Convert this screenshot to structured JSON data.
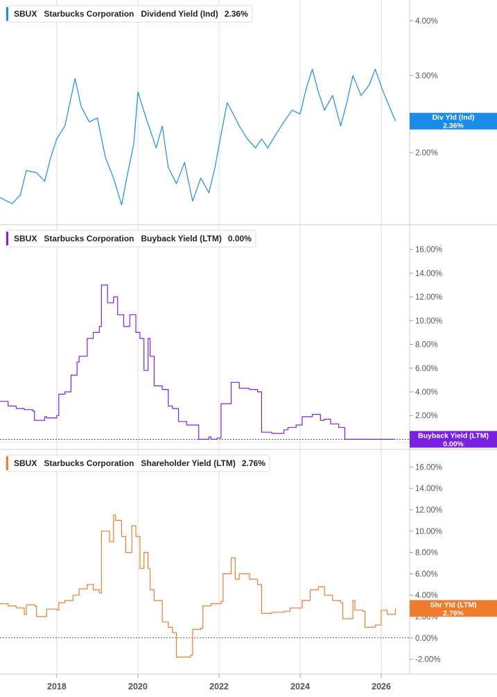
{
  "chart_data": [
    {
      "type": "line",
      "ticker": "SBUX",
      "company": "Starbucks Corporation",
      "metric": "Dividend Yield (Ind)",
      "current_value": "2.36%",
      "tag_label": "Div Yld (Ind)",
      "color": "#1a8be8",
      "log_scale": true,
      "ylim": [
        1.4,
        4.3
      ],
      "yticks": [
        {
          "value": 2,
          "label": "2.00%"
        },
        {
          "value": 3,
          "label": "3.00%"
        },
        {
          "value": 4,
          "label": "4.00%"
        }
      ],
      "zero_line": false,
      "x": [
        2016.6,
        2016.9,
        2017.1,
        2017.25,
        2017.5,
        2017.7,
        2017.85,
        2018.0,
        2018.2,
        2018.45,
        2018.6,
        2018.8,
        2019.0,
        2019.2,
        2019.4,
        2019.6,
        2019.75,
        2019.9,
        2020.0,
        2020.2,
        2020.45,
        2020.6,
        2020.75,
        2020.95,
        2021.15,
        2021.35,
        2021.55,
        2021.75,
        2021.9,
        2022.05,
        2022.2,
        2022.35,
        2022.5,
        2022.7,
        2022.9,
        2023.05,
        2023.2,
        2023.4,
        2023.6,
        2023.8,
        2024.0,
        2024.15,
        2024.3,
        2024.45,
        2024.6,
        2024.8,
        2025.0,
        2025.15,
        2025.3,
        2025.5,
        2025.7,
        2025.85,
        2026.05,
        2026.2,
        2026.35
      ],
      "y": [
        1.58,
        1.53,
        1.6,
        1.82,
        1.8,
        1.72,
        1.95,
        2.15,
        2.3,
        2.95,
        2.55,
        2.35,
        2.4,
        1.95,
        1.75,
        1.52,
        1.8,
        2.1,
        2.75,
        2.4,
        2.05,
        2.3,
        1.85,
        1.7,
        1.9,
        1.55,
        1.75,
        1.62,
        1.85,
        2.2,
        2.6,
        2.45,
        2.3,
        2.15,
        2.05,
        2.15,
        2.05,
        2.2,
        2.35,
        2.5,
        2.45,
        2.8,
        3.1,
        2.75,
        2.5,
        2.7,
        2.3,
        2.6,
        3.0,
        2.7,
        2.85,
        3.1,
        2.75,
        2.55,
        2.36
      ]
    },
    {
      "type": "line",
      "ticker": "SBUX",
      "company": "Starbucks Corporation",
      "metric": "Buyback Yield (LTM)",
      "current_value": "0.00%",
      "tag_label": "Buyback Yield (LTM)",
      "color": "#7b1fe0",
      "log_scale": false,
      "ylim": [
        -0.5,
        17.5
      ],
      "yticks": [
        {
          "value": 2,
          "label": "2.00%"
        },
        {
          "value": 4,
          "label": "4.00%"
        },
        {
          "value": 6,
          "label": "6.00%"
        },
        {
          "value": 8,
          "label": "8.00%"
        },
        {
          "value": 10,
          "label": "10.00%"
        },
        {
          "value": 12,
          "label": "12.00%"
        },
        {
          "value": 14,
          "label": "14.00%"
        },
        {
          "value": 16,
          "label": "16.00%"
        }
      ],
      "zero_line": true,
      "x": [
        2016.6,
        2016.8,
        2017.0,
        2017.2,
        2017.4,
        2017.45,
        2017.7,
        2017.75,
        2018.0,
        2018.05,
        2018.2,
        2018.35,
        2018.5,
        2018.55,
        2018.75,
        2018.9,
        2019.05,
        2019.1,
        2019.25,
        2019.4,
        2019.5,
        2019.65,
        2019.8,
        2019.95,
        2020.05,
        2020.15,
        2020.25,
        2020.3,
        2020.4,
        2020.6,
        2020.75,
        2020.85,
        2021.0,
        2021.2,
        2021.5,
        2021.75,
        2021.8,
        2021.95,
        2022.05,
        2022.3,
        2022.5,
        2022.75,
        2022.95,
        2023.05,
        2023.3,
        2023.6,
        2023.7,
        2023.9,
        2024.05,
        2024.3,
        2024.5,
        2024.6,
        2024.75,
        2024.95,
        2025.1,
        2025.3,
        2025.6,
        2026.0,
        2026.35
      ],
      "y": [
        3.2,
        2.8,
        2.6,
        2.5,
        2.4,
        1.6,
        1.9,
        1.8,
        2.0,
        3.8,
        4.0,
        5.4,
        6.5,
        7.0,
        8.5,
        9.0,
        9.5,
        13.0,
        11.5,
        12.0,
        10.5,
        9.5,
        10.5,
        9.0,
        8.5,
        5.8,
        8.5,
        7.0,
        4.5,
        4.2,
        2.8,
        2.6,
        1.5,
        1.2,
        0.0,
        0.2,
        0.0,
        0.1,
        3.0,
        4.8,
        4.3,
        4.2,
        4.0,
        0.6,
        0.5,
        0.8,
        1.0,
        1.2,
        1.9,
        2.1,
        1.6,
        1.7,
        1.3,
        1.0,
        0.0,
        0.0,
        0.0,
        0.0,
        0.0
      ]
    },
    {
      "type": "line",
      "ticker": "SBUX",
      "company": "Starbucks Corporation",
      "metric": "Shareholder Yield (LTM)",
      "current_value": "2.76%",
      "tag_label": "Shr Yld (LTM)",
      "color": "#f07b2c",
      "log_scale": false,
      "ylim": [
        -3,
        17
      ],
      "yticks": [
        {
          "value": -2,
          "label": "-2.00%"
        },
        {
          "value": 0,
          "label": "0.00%"
        },
        {
          "value": 2,
          "label": "2.00%"
        },
        {
          "value": 4,
          "label": "4.00%"
        },
        {
          "value": 6,
          "label": "6.00%"
        },
        {
          "value": 8,
          "label": "8.00%"
        },
        {
          "value": 10,
          "label": "10.00%"
        },
        {
          "value": 12,
          "label": "12.00%"
        },
        {
          "value": 14,
          "label": "14.00%"
        },
        {
          "value": 16,
          "label": "16.00%"
        }
      ],
      "zero_line": true,
      "x": [
        2016.6,
        2016.8,
        2017.0,
        2017.2,
        2017.25,
        2017.45,
        2017.5,
        2017.7,
        2017.75,
        2018.0,
        2018.05,
        2018.2,
        2018.4,
        2018.55,
        2018.75,
        2018.9,
        2019.05,
        2019.1,
        2019.3,
        2019.4,
        2019.45,
        2019.6,
        2019.7,
        2019.85,
        2019.95,
        2020.05,
        2020.15,
        2020.25,
        2020.3,
        2020.4,
        2020.6,
        2020.75,
        2020.85,
        2020.95,
        2021.3,
        2021.35,
        2021.55,
        2021.6,
        2021.8,
        2022.05,
        2022.1,
        2022.3,
        2022.4,
        2022.5,
        2022.75,
        2022.95,
        2023.05,
        2023.3,
        2023.6,
        2023.75,
        2024.05,
        2024.25,
        2024.45,
        2024.6,
        2024.8,
        2025.0,
        2025.05,
        2025.3,
        2025.35,
        2025.55,
        2025.6,
        2025.85,
        2026.0,
        2026.15,
        2026.35
      ],
      "y": [
        3.2,
        3.0,
        2.8,
        2.2,
        3.1,
        3.0,
        2.0,
        2.0,
        2.7,
        2.6,
        3.3,
        3.5,
        4.0,
        4.6,
        5.0,
        4.5,
        4.2,
        10.0,
        9.0,
        11.5,
        11.0,
        9.5,
        8.0,
        10.5,
        9.5,
        6.5,
        8.0,
        6.5,
        4.5,
        3.5,
        1.5,
        1.0,
        0.5,
        -1.8,
        -1.6,
        0.8,
        0.9,
        3.0,
        3.2,
        3.4,
        6.0,
        7.5,
        5.5,
        6.0,
        5.5,
        5.0,
        2.3,
        2.4,
        2.5,
        2.8,
        3.5,
        4.5,
        4.8,
        4.0,
        3.5,
        3.3,
        1.8,
        3.5,
        2.6,
        2.5,
        1.0,
        1.2,
        2.6,
        2.2,
        2.76
      ]
    }
  ],
  "x_axis": {
    "xlim": [
      2016.6,
      2026.7
    ],
    "ticks": [
      {
        "value": 2018,
        "label": "2018"
      },
      {
        "value": 2020,
        "label": "2020"
      },
      {
        "value": 2022,
        "label": "2022"
      },
      {
        "value": 2024,
        "label": "2024"
      },
      {
        "value": 2026,
        "label": "2026"
      }
    ]
  },
  "colors": {
    "grid": "#dddddd",
    "axis_text": "#555555",
    "zero_line": "#555555"
  }
}
